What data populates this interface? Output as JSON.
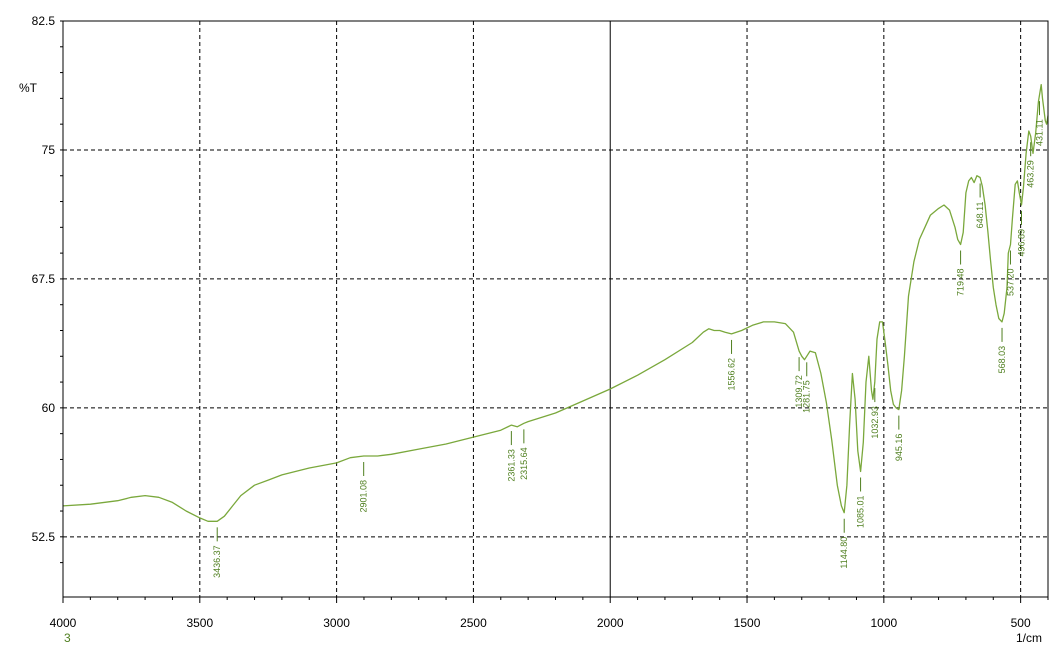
{
  "chart_data": {
    "type": "line",
    "title": "",
    "xlabel": "1/cm",
    "ylabel": "%T",
    "xlim": [
      4000,
      400
    ],
    "ylim": [
      49,
      82.5
    ],
    "x_reversed": true,
    "grid": true,
    "x_ticks": [
      4000,
      3500,
      3000,
      2500,
      2000,
      1500,
      1000,
      500
    ],
    "x_tick_labels": [
      "4000",
      "3500",
      "3000",
      "2500",
      "2000",
      "1500",
      "1000",
      "500"
    ],
    "y_ticks": [
      82.5,
      75,
      67.5,
      60,
      52.5
    ],
    "y_tick_labels": [
      "82.5",
      "75",
      "67.5",
      "60",
      "52.5"
    ],
    "sample_label": "3",
    "series": [
      {
        "x": [
          4000,
          3900,
          3800,
          3750,
          3700,
          3650,
          3600,
          3550,
          3500,
          3470,
          3436.37,
          3410,
          3380,
          3350,
          3300,
          3250,
          3200,
          3100,
          3000,
          2950,
          2901.08,
          2850,
          2800,
          2700,
          2600,
          2500,
          2400,
          2361.33,
          2340,
          2315.64,
          2300,
          2200,
          2100,
          2000,
          1900,
          1800,
          1700,
          1660,
          1640,
          1620,
          1600,
          1580,
          1556.62,
          1520,
          1480,
          1440,
          1400,
          1360,
          1330,
          1309.72,
          1300,
          1290,
          1281.75,
          1270,
          1250,
          1230,
          1210,
          1190,
          1170,
          1155,
          1144.8,
          1135,
          1125,
          1115,
          1105,
          1095,
          1085.01,
          1075,
          1065,
          1055,
          1045,
          1040,
          1032.93,
          1025,
          1015,
          1005,
          995,
          985,
          975,
          965,
          955,
          945.16,
          935,
          925,
          910,
          890,
          870,
          850,
          830,
          800,
          780,
          760,
          740,
          730,
          719.48,
          710,
          700,
          690,
          680,
          670,
          660,
          648.11,
          640,
          630,
          620,
          610,
          600,
          590,
          580,
          568.03,
          560,
          550,
          545,
          537.2,
          530,
          520,
          512,
          505,
          496.89,
          490,
          480,
          470,
          463.29,
          455,
          445,
          435,
          425,
          420,
          410,
          405,
          400
        ],
        "y": [
          54.3,
          54.4,
          54.6,
          54.8,
          54.9,
          54.8,
          54.5,
          54.0,
          53.6,
          53.4,
          53.4,
          53.7,
          54.3,
          54.9,
          55.5,
          55.8,
          56.1,
          56.5,
          56.8,
          57.1,
          57.2,
          57.2,
          57.3,
          57.6,
          57.9,
          58.3,
          58.7,
          59.0,
          58.9,
          59.1,
          59.2,
          59.7,
          60.4,
          61.1,
          61.9,
          62.8,
          63.8,
          64.4,
          64.6,
          64.5,
          64.5,
          64.4,
          64.3,
          64.5,
          64.8,
          65.0,
          65.0,
          64.9,
          64.4,
          63.3,
          63.0,
          62.8,
          63.0,
          63.3,
          63.2,
          62.0,
          60.3,
          58.1,
          55.5,
          54.3,
          53.9,
          55.5,
          59.0,
          62.0,
          60.5,
          57.5,
          56.3,
          58.0,
          61.5,
          63.0,
          61.0,
          60.5,
          61.5,
          64.0,
          65.0,
          65.0,
          63.8,
          62.5,
          61.0,
          60.2,
          60.0,
          59.9,
          61.0,
          63.0,
          66.5,
          68.5,
          69.8,
          70.5,
          71.2,
          71.6,
          71.8,
          71.5,
          70.5,
          69.8,
          69.5,
          70.2,
          72.5,
          73.2,
          73.4,
          73.1,
          73.5,
          73.4,
          72.9,
          71.8,
          70.3,
          68.6,
          67.0,
          66.0,
          65.2,
          65.0,
          65.5,
          67.0,
          69.0,
          69.5,
          71.0,
          73.0,
          73.2,
          72.5,
          71.8,
          72.8,
          74.8,
          76.1,
          75.8,
          74.8,
          76.0,
          77.8,
          78.8,
          78.0,
          76.7,
          76.5,
          77.0
        ]
      }
    ],
    "peak_labels": [
      {
        "x": 3436.37,
        "text": "3436.37"
      },
      {
        "x": 2901.08,
        "text": "2901.08"
      },
      {
        "x": 2361.33,
        "text": "2361.33"
      },
      {
        "x": 2315.64,
        "text": "2315.64"
      },
      {
        "x": 1556.62,
        "text": "1556.62"
      },
      {
        "x": 1309.72,
        "text": "1309.72"
      },
      {
        "x": 1281.75,
        "text": "1281.75"
      },
      {
        "x": 1144.8,
        "text": "1144.80"
      },
      {
        "x": 1085.01,
        "text": "1085.01"
      },
      {
        "x": 1032.93,
        "text": "1032.93"
      },
      {
        "x": 945.16,
        "text": "945.16"
      },
      {
        "x": 719.48,
        "text": "719.48"
      },
      {
        "x": 648.11,
        "text": "648.11"
      },
      {
        "x": 568.03,
        "text": "568.03"
      },
      {
        "x": 537.2,
        "text": "537.20"
      },
      {
        "x": 496.89,
        "text": "496.89"
      },
      {
        "x": 463.29,
        "text": "463.29"
      },
      {
        "x": 431.11,
        "text": "431.11"
      }
    ]
  },
  "colors": {
    "line": "#7aa83c",
    "label": "#4f7f1f",
    "grid": "#000000",
    "axis": "#000000"
  }
}
